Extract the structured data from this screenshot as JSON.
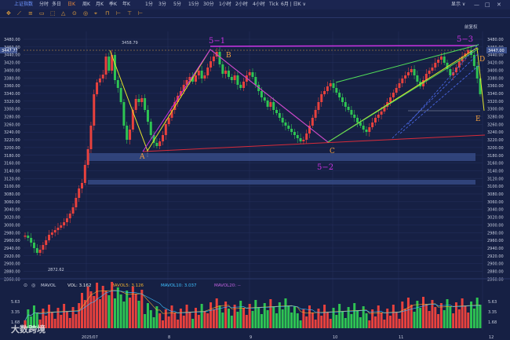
{
  "toolbar": {
    "index_title": "上证指数",
    "periods": [
      "分时",
      "多日",
      "日K",
      "周K",
      "月K",
      "季K",
      "年K",
      "1分",
      "3分",
      "5分",
      "15分",
      "30分",
      "1小时",
      "2小时",
      "4小时",
      "Tick",
      "6月 | 日K ∨"
    ],
    "active_period": "日K",
    "display_label": "显示 ∨",
    "window_controls": [
      "—",
      "□",
      "✕"
    ]
  },
  "drawing_tools": [
    "✥",
    "⟋",
    "≡",
    "▭",
    "⬚",
    "△",
    "⊙",
    "◎",
    "⌖",
    "⊓",
    "⊢",
    "⊤",
    "⊢"
  ],
  "price_axis": {
    "labels": [
      "3480.00",
      "3460.00",
      "3440.00",
      "3420.00",
      "3400.00",
      "3380.00",
      "3360.00",
      "3340.00",
      "3320.00",
      "3300.00",
      "3280.00",
      "3260.00",
      "3240.00",
      "3220.00",
      "3200.00",
      "3180.00",
      "3160.00",
      "3140.00",
      "3120.00",
      "3100.00",
      "3080.00",
      "3060.00",
      "3040.00",
      "3020.00",
      "3000.00",
      "2980.00",
      "2960.00",
      "2940.00",
      "2920.00",
      "2900.00",
      "2880.00",
      "2860.00"
    ],
    "current_tag_left": "3447.77",
    "current_tag_right": "3447.00",
    "high_label": "3458.79",
    "low_label": "2872.62",
    "button": "前复权"
  },
  "annotations": {
    "wave_5_1": "5−1",
    "wave_5_2": "5−2",
    "wave_5_3": "5−3",
    "A": "A",
    "B": "B",
    "C": "C",
    "D": "D",
    "E": "E"
  },
  "volume_panel": {
    "indicator": "MAVOL",
    "vol": "VOL: 3.162",
    "mavol5": "MAVOL5: 3.126",
    "mavol10": "MAVOL10: 3.037",
    "mavol20": "MAVOL20: --",
    "axis_labels": [
      "5.63",
      "3.35",
      "1.68"
    ],
    "dates": [
      "2025/07",
      "8",
      "9",
      "10",
      "11",
      "12"
    ]
  },
  "watermark": "大数跨境",
  "colors": {
    "up": "#e8413d",
    "down": "#2ec453",
    "bg": "#162044",
    "magenta": "#c832e0",
    "yellow": "#e5e52a",
    "green": "#52e05a",
    "red_line": "#d82b3a"
  }
}
